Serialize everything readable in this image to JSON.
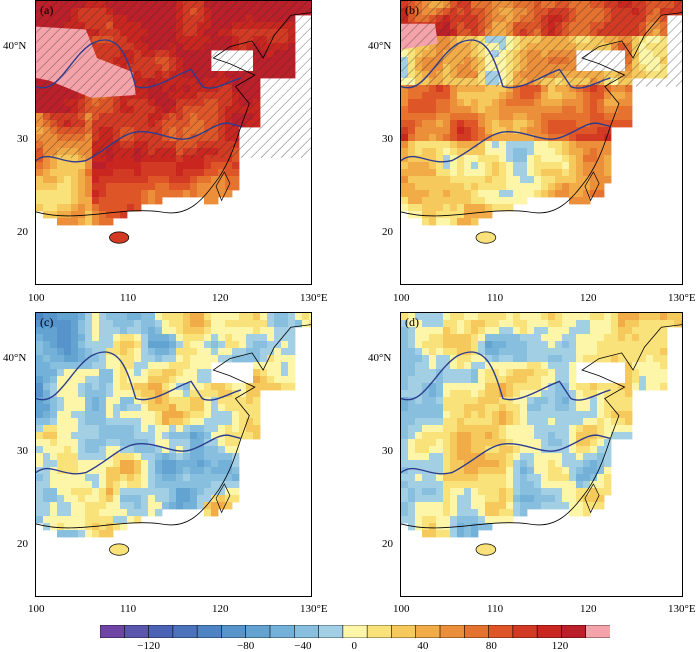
{
  "panels": [
    {
      "id": "a",
      "label": "(a)",
      "hatched": true
    },
    {
      "id": "b",
      "label": "(b)",
      "hatched": true
    },
    {
      "id": "c",
      "label": "(c)",
      "hatched": false
    },
    {
      "id": "d",
      "label": "(d)",
      "hatched": false
    }
  ],
  "axes": {
    "x_ticks": [
      "100",
      "110",
      "120",
      "130°E"
    ],
    "y_ticks": [
      "40°N",
      "30",
      "20"
    ],
    "lon_range": [
      100,
      130
    ],
    "lat_range": [
      15,
      45
    ]
  },
  "colorbar": {
    "tick_labels": [
      "−120",
      "−80",
      "−40",
      "0",
      "40",
      "80",
      "120"
    ],
    "colors": [
      "#6e45a4",
      "#5a55ad",
      "#4b63b4",
      "#4a73bb",
      "#4e84c4",
      "#5794cb",
      "#62a3d2",
      "#73b1d8",
      "#88bfde",
      "#a3cfe4",
      "#fdf6a8",
      "#fae27a",
      "#f6c95c",
      "#f1ac47",
      "#ec8f3a",
      "#e6722f",
      "#de5528",
      "#d23a23",
      "#c8261f",
      "#bb1f2a",
      "#f5a3aa"
    ],
    "n_colors": 21
  },
  "map_colors": {
    "land_outline": "#000000",
    "river": "#2c3d8f",
    "hatch": "#333333"
  }
}
